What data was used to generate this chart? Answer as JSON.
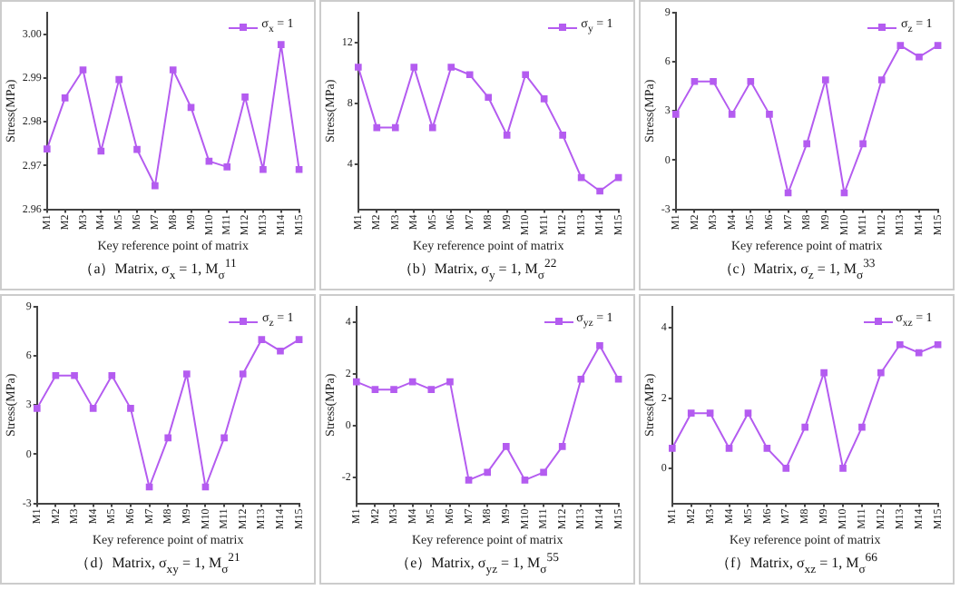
{
  "chart_data": [
    {
      "type": "line",
      "title": "（a）Matrix, σ$_{x}$ = 1, M$_{σ}$$^{11}$",
      "xlabel": "Key reference point of matrix",
      "ylabel": "Stress(MPa)",
      "categories": [
        "M1",
        "M2",
        "M3",
        "M4",
        "M5",
        "M6",
        "M7",
        "M8",
        "M9",
        "M10",
        "M11",
        "M12",
        "M13",
        "M14",
        "M15"
      ],
      "series": [
        {
          "name": "σ$_{x}$ = 1",
          "color": "#b45cf0",
          "values": [
            2.9738,
            2.9855,
            2.9919,
            2.9733,
            2.9897,
            2.9737,
            2.9654,
            2.9919,
            2.9833,
            2.971,
            2.9697,
            2.9857,
            2.9691,
            2.9977,
            2.9691
          ]
        }
      ],
      "ylim": [
        2.96,
        3.005
      ],
      "yticks": [
        2.96,
        2.97,
        2.98,
        2.99,
        {
          "value": 3,
          "label": "3.00"
        }
      ],
      "legend": "top right",
      "marker": "square"
    },
    {
      "type": "line",
      "title": "（b）Matrix, σ$_{y}$ = 1, M$_{σ}$$^{22}$",
      "xlabel": "Key reference point of matrix",
      "ylabel": "Stress(MPa)",
      "categories": [
        "M1",
        "M2",
        "M3",
        "M4",
        "M5",
        "M6",
        "M7",
        "M8",
        "M9",
        "M10",
        "M11",
        "M12",
        "M13",
        "M14",
        "M15"
      ],
      "series": [
        {
          "name": "σ$_{y}$ = 1",
          "color": "#b45cf0",
          "values": [
            10.4,
            6.4,
            6.4,
            10.4,
            6.4,
            10.4,
            9.9,
            8.4,
            5.9,
            9.9,
            8.3,
            5.9,
            3.1,
            2.2,
            3.1
          ]
        }
      ],
      "ylim": [
        1,
        14
      ],
      "yticks": [
        4,
        8,
        12
      ],
      "legend": "top right",
      "marker": "square"
    },
    {
      "type": "line",
      "title": "（c）Matrix, σ$_{z}$ = 1, M$_{σ}$$^{33}$",
      "xlabel": "Key reference point of matrix",
      "ylabel": "Stress(MPa)",
      "categories": [
        "M1",
        "M2",
        "M3",
        "M4",
        "M5",
        "M6",
        "M7",
        "M8",
        "M9",
        "M10",
        "M11",
        "M12",
        "M13",
        "M14",
        "M15"
      ],
      "series": [
        {
          "name": "σ$_{z}$ = 1",
          "color": "#b45cf0",
          "values": [
            2.8,
            4.8,
            4.8,
            2.8,
            4.8,
            2.8,
            -2.0,
            1.0,
            4.9,
            -2.0,
            1.0,
            4.9,
            7.0,
            6.3,
            7.0
          ]
        }
      ],
      "ylim": [
        -3,
        9
      ],
      "yticks": [
        -3,
        0,
        3,
        6,
        9
      ],
      "legend": "top right",
      "marker": "square"
    },
    {
      "type": "line",
      "title": "（d）Matrix, σ$_{xy}$ = 1, M$_{σ}$$^{21}$",
      "xlabel": "Key reference point of matrix",
      "ylabel": "Stress(MPa)",
      "categories": [
        "M1",
        "M2",
        "M3",
        "M4",
        "M5",
        "M6",
        "M7",
        "M8",
        "M9",
        "M10",
        "M11",
        "M12",
        "M13",
        "M14",
        "M15"
      ],
      "series": [
        {
          "name": "σ$_{z}$ = 1",
          "color": "#b45cf0",
          "values": [
            2.8,
            4.8,
            4.8,
            2.8,
            4.8,
            2.8,
            -2.0,
            1.0,
            4.9,
            -2.0,
            1.0,
            4.9,
            7.0,
            6.3,
            7.0
          ]
        }
      ],
      "ylim": [
        -3,
        9
      ],
      "yticks": [
        -3,
        0,
        3,
        6,
        9
      ],
      "legend": "top right",
      "marker": "square"
    },
    {
      "type": "line",
      "title": "（e）Matrix, σ$_{yz}$ = 1, M$_{σ}$$^{55}$",
      "xlabel": "Key reference point of matrix",
      "ylabel": "Stress(MPa)",
      "categories": [
        "M1",
        "M2",
        "M3",
        "M4",
        "M5",
        "M6",
        "M7",
        "M8",
        "M9",
        "M10",
        "M11",
        "M12",
        "M13",
        "M14",
        "M15"
      ],
      "series": [
        {
          "name": "σ$_{yz}$ = 1",
          "color": "#b45cf0",
          "values": [
            1.7,
            1.4,
            1.4,
            1.7,
            1.4,
            1.7,
            -2.1,
            -1.8,
            -0.8,
            -2.1,
            -1.8,
            -0.8,
            1.8,
            3.1,
            1.8
          ]
        }
      ],
      "ylim": [
        -3,
        4.6
      ],
      "yticks": [
        -2,
        0,
        2,
        4
      ],
      "legend": "top right",
      "marker": "square"
    },
    {
      "type": "line",
      "title": "（f）Matrix, σ$_{xz}$ = 1, M$_{σ}$$^{66}$",
      "xlabel": "Key reference point of matrix",
      "ylabel": "Stress(MPa)",
      "categories": [
        "M1",
        "M2",
        "M3",
        "M4",
        "M5",
        "M6",
        "M7",
        "M8",
        "M9",
        "M10",
        "M11",
        "M12",
        "M13",
        "M14",
        "M15"
      ],
      "series": [
        {
          "name": "σ$_{xz}$ = 1",
          "color": "#b45cf0",
          "values": [
            0.57,
            1.57,
            1.57,
            0.57,
            1.57,
            0.57,
            0.0,
            1.17,
            2.72,
            0.0,
            1.17,
            2.72,
            3.52,
            3.29,
            3.52
          ]
        }
      ],
      "ylim": [
        -1,
        4.6
      ],
      "yticks": [
        0,
        2,
        4
      ],
      "legend": "top right",
      "marker": "square"
    }
  ]
}
